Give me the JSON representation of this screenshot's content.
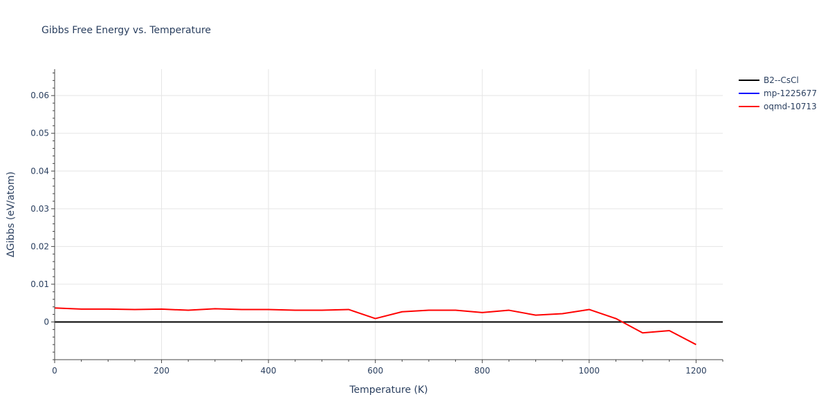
{
  "chart_data": {
    "type": "line",
    "title": "Gibbs Free Energy vs. Temperature",
    "xlabel": "Temperature (K)",
    "ylabel": "ΔGibbs (eV/atom)",
    "xlim": [
      0,
      1250
    ],
    "ylim": [
      -0.01,
      0.067
    ],
    "xticks": [
      0,
      200,
      400,
      600,
      800,
      1000,
      1200
    ],
    "xtick_labels": [
      "0",
      "200",
      "400",
      "600",
      "800",
      "1000",
      "1200"
    ],
    "yticks": [
      0,
      0.01,
      0.02,
      0.03,
      0.04,
      0.05,
      0.06
    ],
    "ytick_labels": [
      "0",
      "0.01",
      "0.02",
      "0.03",
      "0.04",
      "0.05",
      "0.06"
    ],
    "grid": true,
    "legend_position": "top-right",
    "series": [
      {
        "name": "B2--CsCl",
        "color": "#000000",
        "x": [
          0,
          1250
        ],
        "y": [
          0,
          0
        ]
      },
      {
        "name": "mp-1225677",
        "color": "#0000ff",
        "x": [],
        "y": []
      },
      {
        "name": "oqmd-10713",
        "color": "#ff0000",
        "x": [
          0,
          50,
          100,
          150,
          200,
          250,
          300,
          350,
          400,
          450,
          500,
          550,
          600,
          650,
          700,
          750,
          800,
          850,
          900,
          950,
          1000,
          1050,
          1100,
          1150,
          1200
        ],
        "y": [
          0.0037,
          0.0034,
          0.0034,
          0.0033,
          0.0034,
          0.0031,
          0.0035,
          0.0033,
          0.0033,
          0.0031,
          0.0031,
          0.0033,
          0.0009,
          0.0027,
          0.0031,
          0.0031,
          0.0025,
          0.0031,
          0.0018,
          0.0022,
          0.0033,
          0.0009,
          -0.0029,
          -0.0023,
          -0.006
        ]
      }
    ]
  }
}
